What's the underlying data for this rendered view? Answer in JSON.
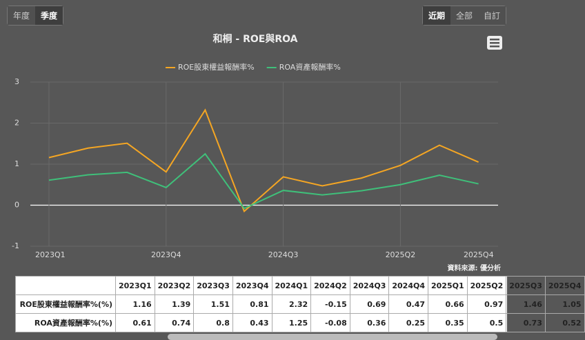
{
  "ui": {
    "period_buttons": [
      "年度",
      "季度"
    ],
    "range_buttons": [
      "近期",
      "全部",
      "自訂"
    ],
    "source": "資料來源: 優分析"
  },
  "chart_data": {
    "type": "line",
    "title": "和桐 - ROE與ROA",
    "categories": [
      "2023Q1",
      "2023Q2",
      "2023Q3",
      "2023Q4",
      "2024Q1",
      "2024Q2",
      "2024Q3",
      "2024Q4",
      "2025Q1",
      "2025Q2",
      "2025Q3",
      "2025Q4"
    ],
    "series": [
      {
        "name": "ROE股東權益報酬率%",
        "color": "#f5a623",
        "values": [
          1.16,
          1.39,
          1.51,
          0.81,
          2.32,
          -0.15,
          0.69,
          0.47,
          0.66,
          0.97,
          1.46,
          1.05
        ]
      },
      {
        "name": "ROA資產報酬率%",
        "color": "#3fc07a",
        "values": [
          0.61,
          0.74,
          0.8,
          0.43,
          1.25,
          -0.08,
          0.36,
          0.25,
          0.35,
          0.5,
          0.73,
          0.52
        ]
      }
    ],
    "ylim": [
      -1,
      3
    ],
    "yticks": [
      -1,
      0,
      1,
      2,
      3
    ],
    "grid": true,
    "legend": "top"
  },
  "table": {
    "row_labels": [
      "ROE股東權益報酬率%(%)",
      "ROA資產報酬率%(%)"
    ]
  }
}
